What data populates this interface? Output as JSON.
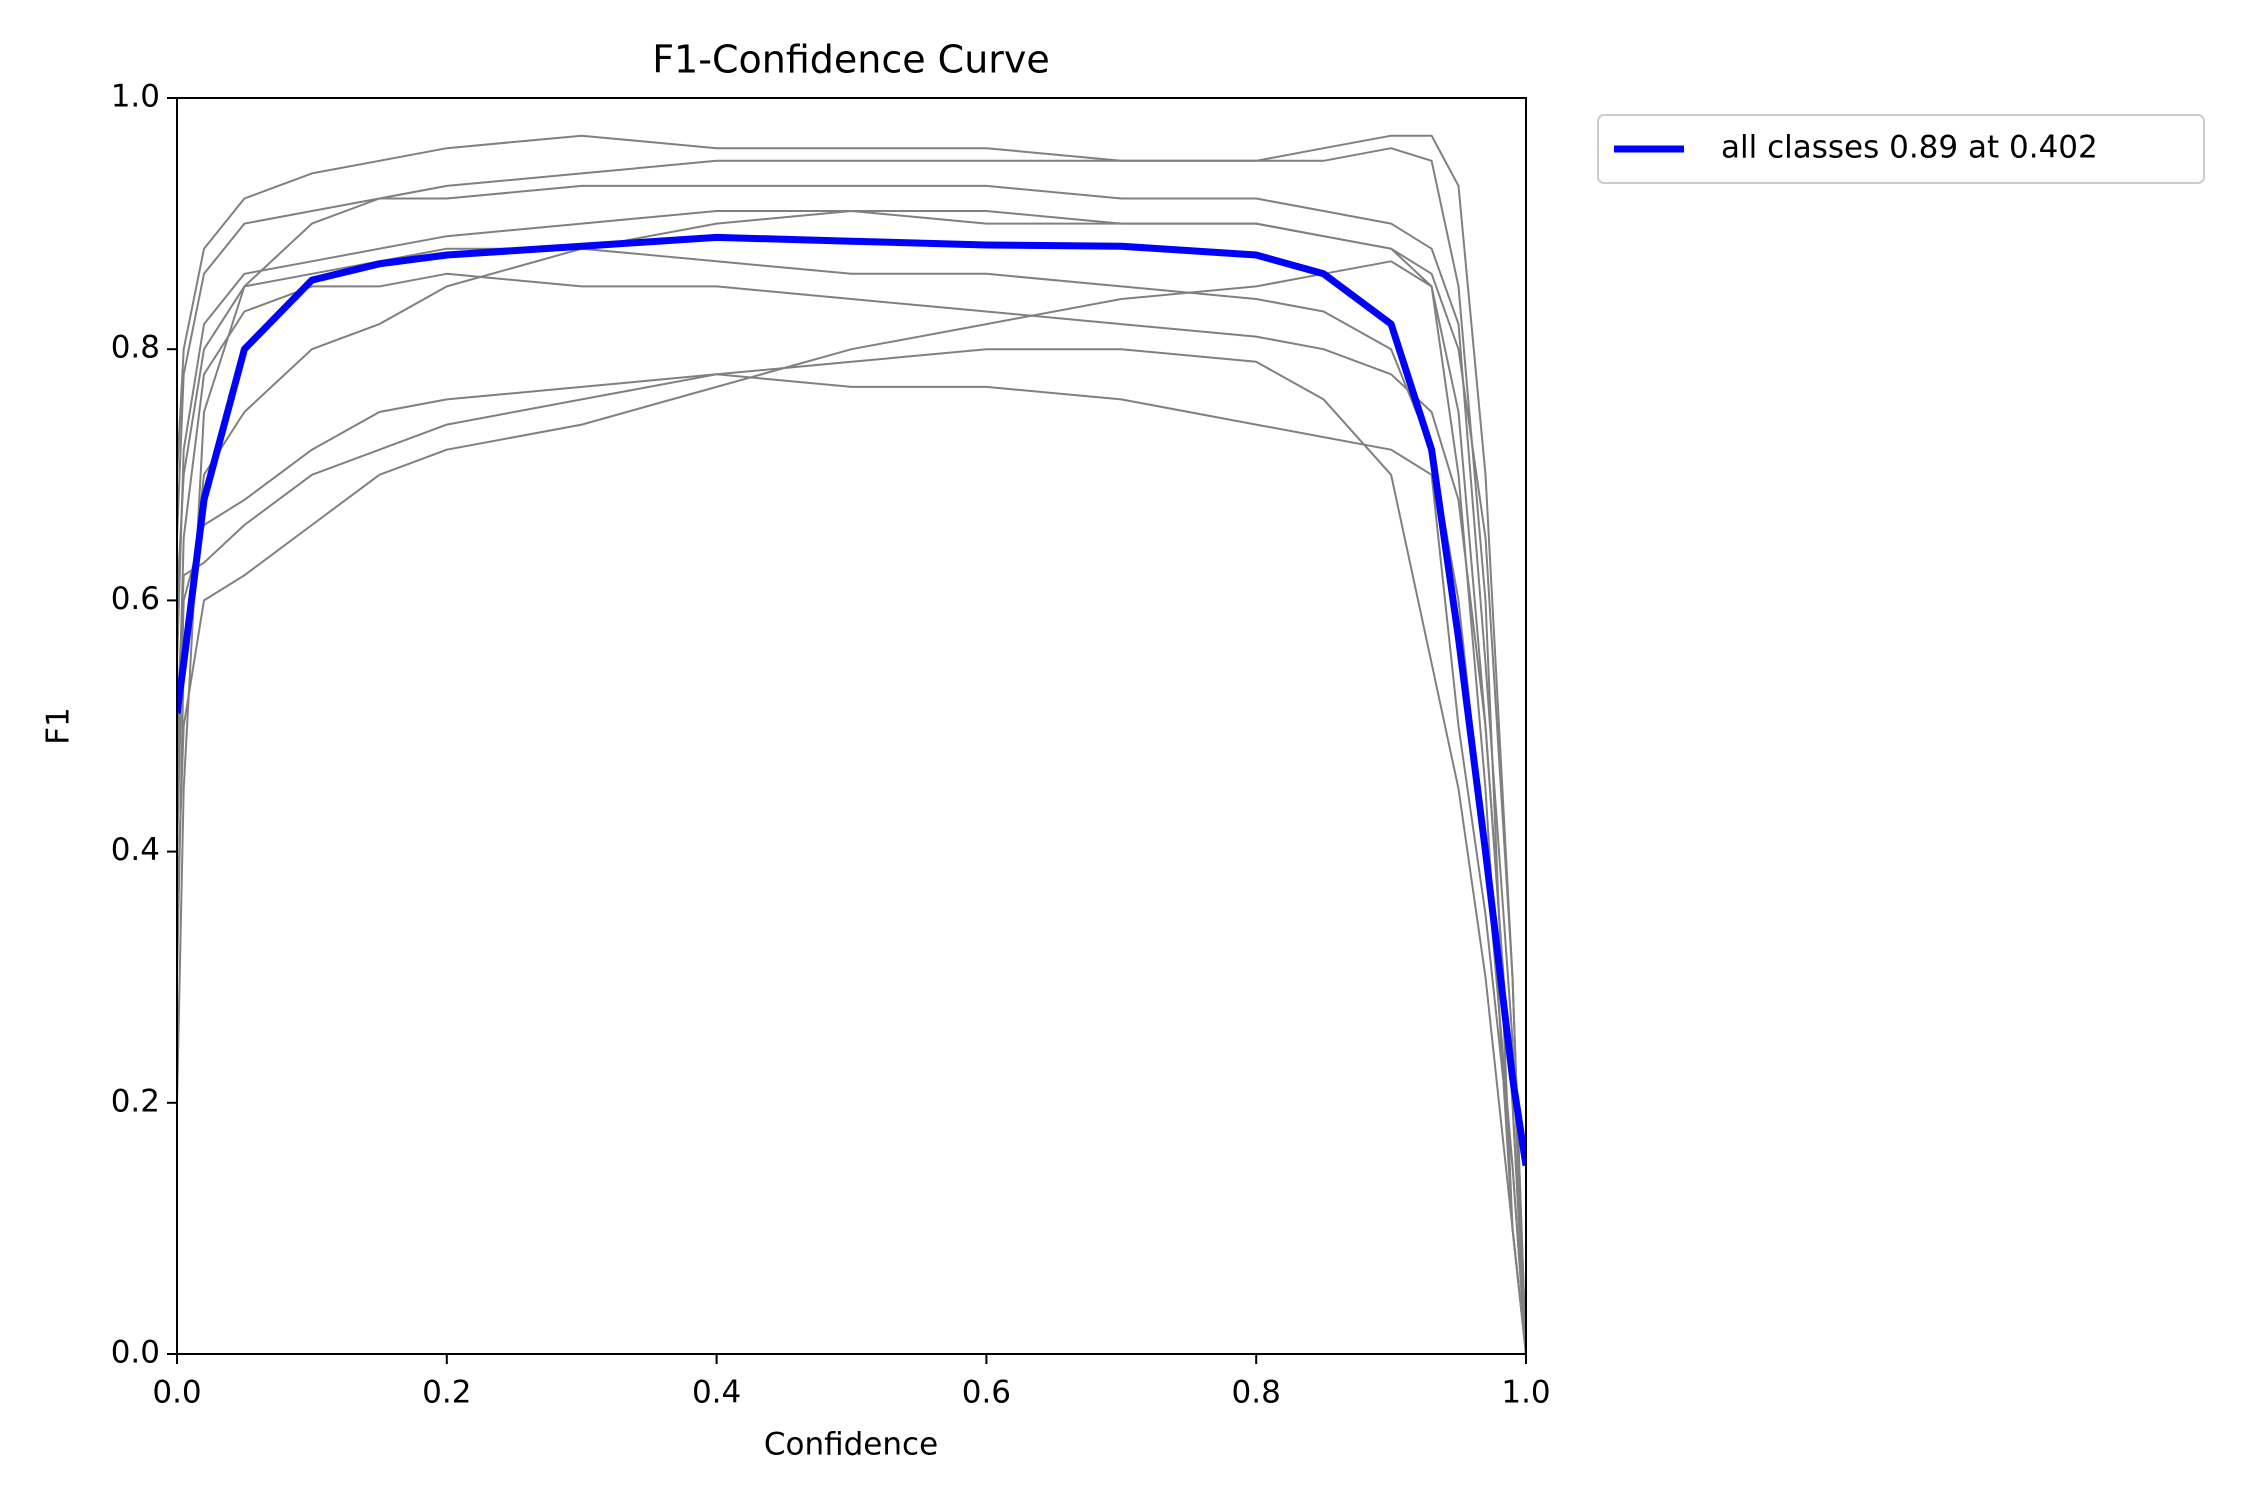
{
  "chart_data": {
    "type": "line",
    "title": "F1-Confidence Curve",
    "xlabel": "Confidence",
    "ylabel": "F1",
    "x": [
      0,
      0.005,
      0.02,
      0.05,
      0.1,
      0.15,
      0.2,
      0.3,
      0.4,
      0.5,
      0.6,
      0.7,
      0.8,
      0.85,
      0.9,
      0.93,
      0.95,
      0.97,
      0.99,
      1.0
    ],
    "series": [
      {
        "color": "#808080",
        "values": [
          0.2,
          0.45,
          0.75,
          0.85,
          0.9,
          0.92,
          0.93,
          0.94,
          0.95,
          0.95,
          0.95,
          0.95,
          0.95,
          0.95,
          0.96,
          0.95,
          0.85,
          0.6,
          0.1,
          0
        ]
      },
      {
        "color": "#808080",
        "values": [
          0.3,
          0.55,
          0.7,
          0.75,
          0.8,
          0.82,
          0.85,
          0.88,
          0.9,
          0.91,
          0.9,
          0.9,
          0.9,
          0.89,
          0.88,
          0.85,
          0.75,
          0.5,
          0.2,
          0
        ]
      },
      {
        "color": "#808080",
        "values": [
          0.5,
          0.62,
          0.63,
          0.66,
          0.7,
          0.72,
          0.74,
          0.76,
          0.78,
          0.79,
          0.8,
          0.8,
          0.79,
          0.76,
          0.7,
          0.55,
          0.45,
          0.3,
          0.1,
          0
        ]
      },
      {
        "color": "#808080",
        "values": [
          0.6,
          0.7,
          0.8,
          0.85,
          0.86,
          0.87,
          0.88,
          0.88,
          0.87,
          0.86,
          0.86,
          0.85,
          0.84,
          0.83,
          0.8,
          0.72,
          0.6,
          0.4,
          0.15,
          0
        ]
      },
      {
        "color": "#808080",
        "values": [
          0.7,
          0.8,
          0.88,
          0.92,
          0.94,
          0.95,
          0.96,
          0.97,
          0.96,
          0.96,
          0.96,
          0.95,
          0.95,
          0.96,
          0.97,
          0.97,
          0.93,
          0.7,
          0.3,
          0
        ]
      },
      {
        "color": "#808080",
        "values": [
          0.4,
          0.6,
          0.66,
          0.68,
          0.72,
          0.75,
          0.76,
          0.77,
          0.78,
          0.77,
          0.77,
          0.76,
          0.74,
          0.73,
          0.72,
          0.7,
          0.5,
          0.35,
          0.15,
          0
        ]
      },
      {
        "color": "#808080",
        "values": [
          0.55,
          0.72,
          0.82,
          0.86,
          0.87,
          0.88,
          0.89,
          0.9,
          0.91,
          0.91,
          0.91,
          0.9,
          0.9,
          0.89,
          0.88,
          0.86,
          0.8,
          0.65,
          0.3,
          0
        ]
      },
      {
        "color": "#808080",
        "values": [
          0.45,
          0.65,
          0.78,
          0.83,
          0.85,
          0.85,
          0.86,
          0.85,
          0.85,
          0.84,
          0.83,
          0.82,
          0.81,
          0.8,
          0.78,
          0.75,
          0.68,
          0.5,
          0.2,
          0
        ]
      },
      {
        "color": "#808080",
        "values": [
          0.65,
          0.78,
          0.86,
          0.9,
          0.91,
          0.92,
          0.92,
          0.93,
          0.93,
          0.93,
          0.93,
          0.92,
          0.92,
          0.91,
          0.9,
          0.88,
          0.82,
          0.55,
          0.25,
          0
        ]
      },
      {
        "color": "#808080",
        "values": [
          0.35,
          0.5,
          0.6,
          0.62,
          0.66,
          0.7,
          0.72,
          0.74,
          0.77,
          0.8,
          0.82,
          0.84,
          0.85,
          0.86,
          0.87,
          0.85,
          0.7,
          0.45,
          0.1,
          0
        ]
      },
      {
        "name": "all classes 0.89 at 0.402",
        "color": "#0000ff",
        "values": [
          0.51,
          0.55,
          0.68,
          0.8,
          0.855,
          0.868,
          0.875,
          0.882,
          0.889,
          0.886,
          0.883,
          0.882,
          0.875,
          0.86,
          0.82,
          0.72,
          0.57,
          0.4,
          0.22,
          0.15
        ]
      }
    ],
    "xlim": [
      0,
      1
    ],
    "ylim": [
      0,
      1
    ],
    "xticks": [
      {
        "value": 0,
        "label": "0.0"
      },
      0.2,
      0.4,
      0.6,
      0.8,
      {
        "value": 1,
        "label": "1.0"
      }
    ],
    "yticks": [
      {
        "value": 0,
        "label": "0.0"
      },
      0.2,
      0.4,
      0.6,
      0.8,
      {
        "value": 1,
        "label": "1.0"
      }
    ],
    "legend": "outside upper right"
  }
}
